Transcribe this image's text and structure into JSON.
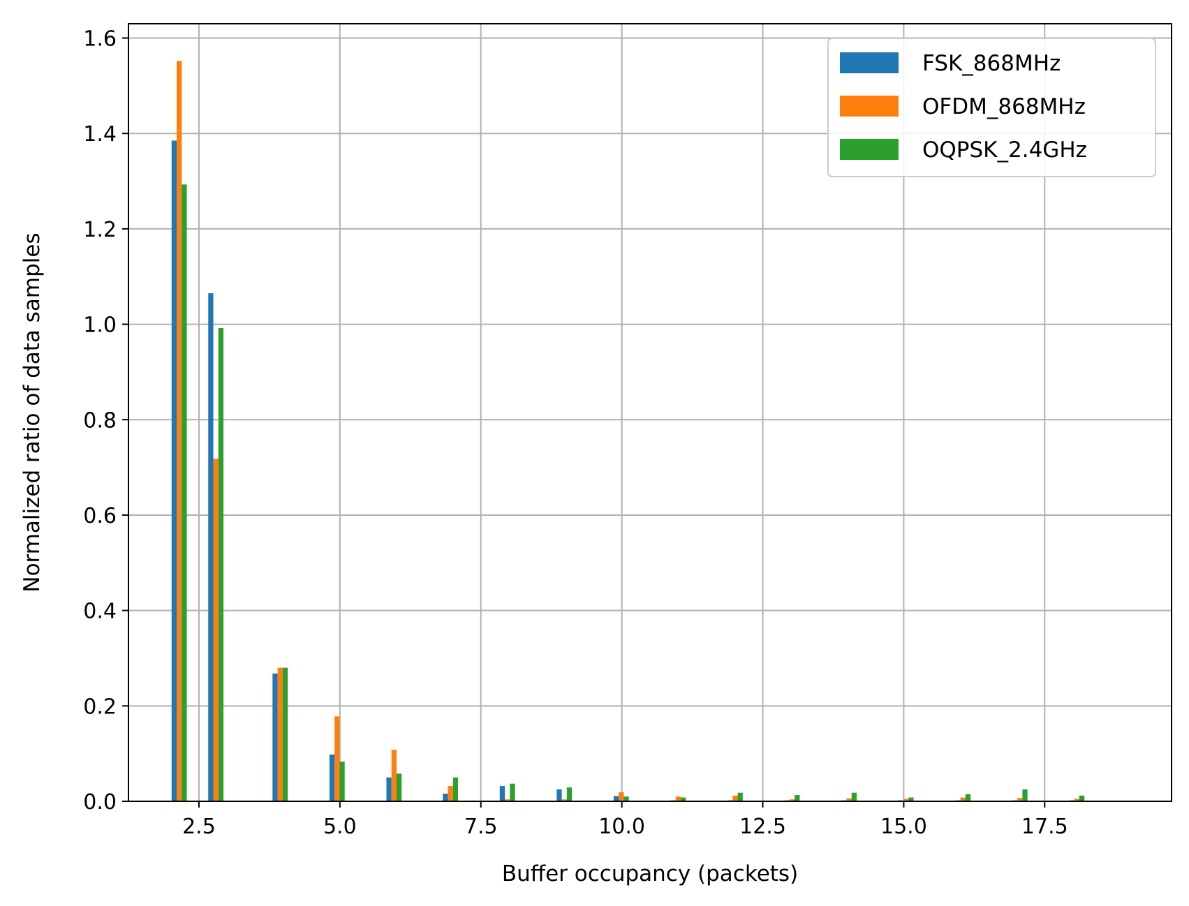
{
  "chart_data": {
    "type": "bar",
    "title": "",
    "xlabel": "Buffer occupancy (packets)",
    "ylabel": "Normalized ratio of data samples",
    "xlim": [
      1.25,
      19.75
    ],
    "ylim": [
      0.0,
      1.63
    ],
    "xticks": [
      2.5,
      5.0,
      7.5,
      10.0,
      12.5,
      15.0,
      17.5
    ],
    "xtick_labels": [
      "2.5",
      "5.0",
      "7.5",
      "10.0",
      "12.5",
      "15.0",
      "17.5"
    ],
    "yticks": [
      0.0,
      0.2,
      0.4,
      0.6,
      0.8,
      1.0,
      1.2,
      1.4,
      1.6
    ],
    "ytick_labels": [
      "0.0",
      "0.2",
      "0.4",
      "0.6",
      "0.8",
      "1.0",
      "1.2",
      "1.4",
      "1.6"
    ],
    "grid": true,
    "legend_position": "top-right",
    "bar_width": 0.09,
    "series": [
      {
        "name": "FSK_868MHz",
        "color": "#1f77b4",
        "x": [
          2.06,
          2.71,
          3.85,
          4.86,
          5.87,
          6.87,
          7.88,
          8.89,
          9.9,
          10.91,
          11.92,
          12.93,
          13.94,
          14.95,
          15.96,
          16.97,
          17.98
        ],
        "values": [
          1.385,
          1.065,
          0.268,
          0.098,
          0.05,
          0.016,
          0.032,
          0.025,
          0.011,
          0.002,
          0.002,
          0.002,
          0.002,
          0.002,
          0.002,
          0.002,
          0.002
        ]
      },
      {
        "name": "OFDM_868MHz",
        "color": "#ff7f0e",
        "x": [
          2.15,
          2.8,
          3.94,
          4.95,
          5.96,
          6.96,
          7.97,
          8.98,
          9.99,
          11.0,
          12.01,
          13.02,
          14.03,
          15.04,
          16.05,
          17.06,
          18.07
        ],
        "values": [
          1.552,
          0.718,
          0.28,
          0.178,
          0.108,
          0.032,
          0.004,
          0.004,
          0.019,
          0.01,
          0.012,
          0.004,
          0.006,
          0.005,
          0.008,
          0.007,
          0.005
        ]
      },
      {
        "name": "OQPSK_2.4GHz",
        "color": "#2ca02c",
        "x": [
          2.24,
          2.89,
          4.03,
          5.04,
          6.05,
          7.05,
          8.06,
          9.07,
          10.08,
          11.09,
          12.1,
          13.11,
          14.12,
          15.13,
          16.14,
          17.15,
          18.16
        ],
        "values": [
          1.293,
          0.992,
          0.28,
          0.083,
          0.058,
          0.05,
          0.037,
          0.029,
          0.01,
          0.008,
          0.018,
          0.013,
          0.018,
          0.008,
          0.015,
          0.025,
          0.012
        ]
      }
    ]
  }
}
